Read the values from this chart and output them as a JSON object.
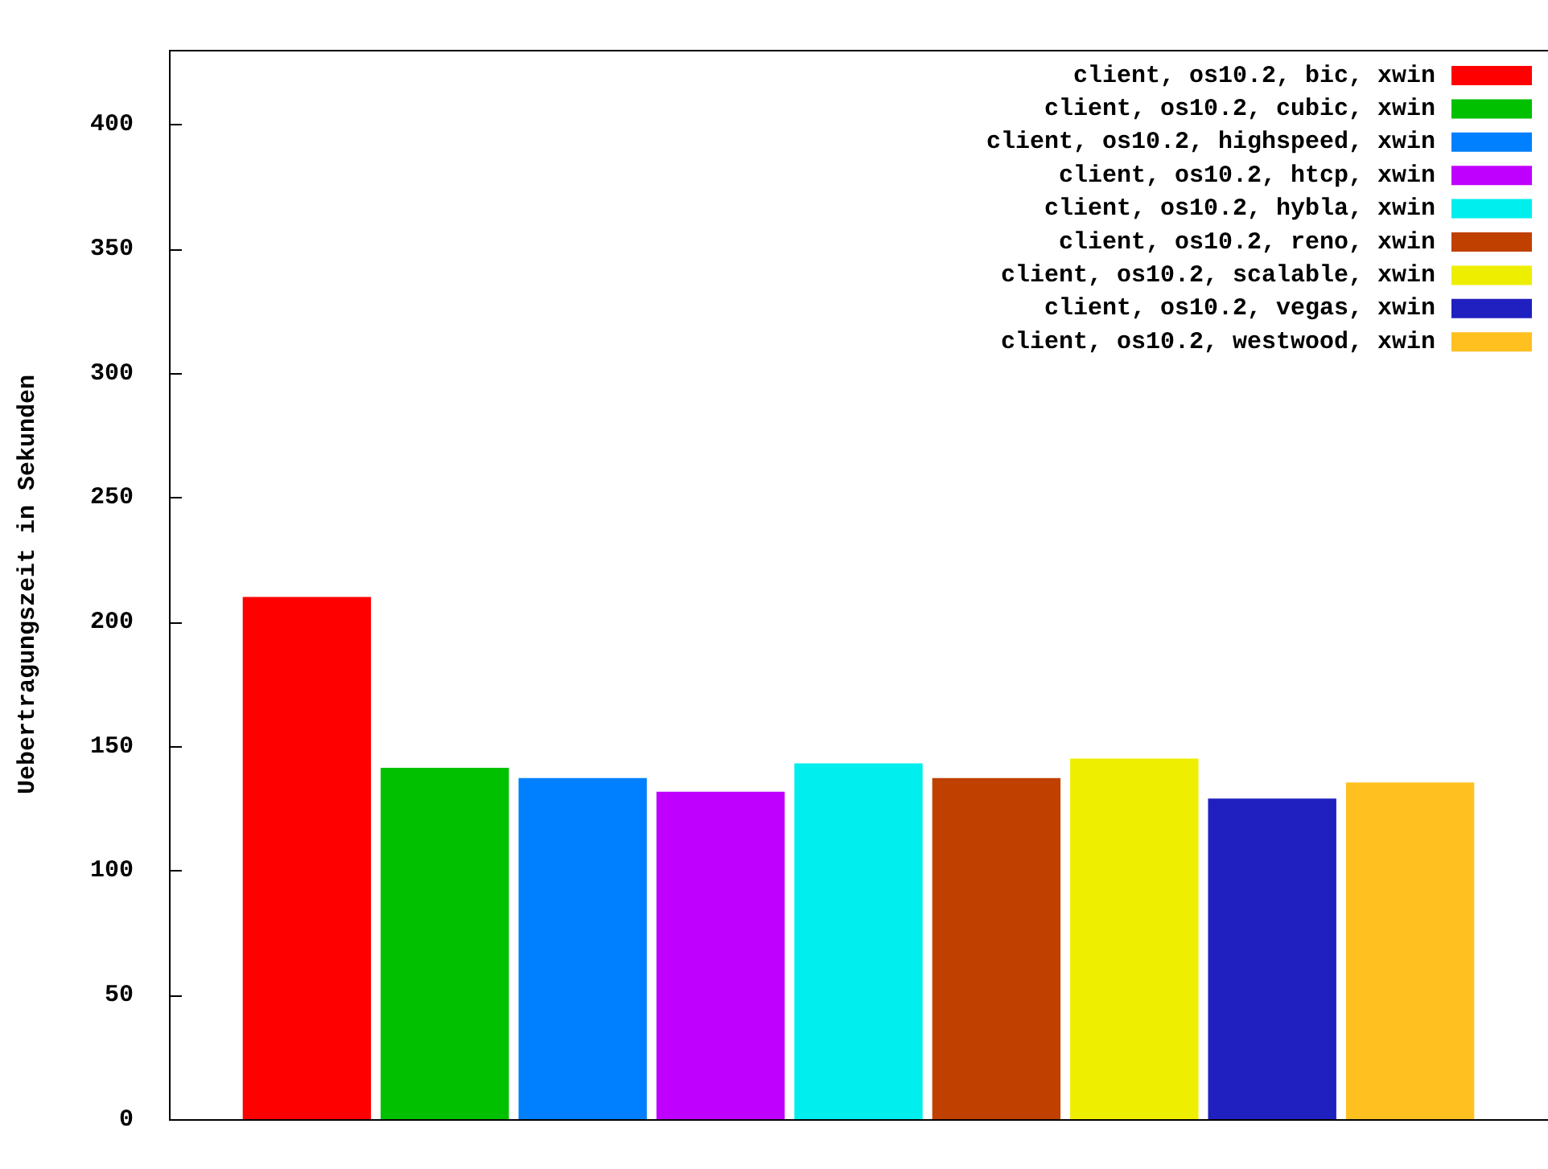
{
  "chart_data": {
    "type": "bar",
    "ylabel": "Uebertragungszeit in Sekunden",
    "categories": [
      null
    ],
    "series": [
      {
        "name": "client, os10.2, bic, xwin",
        "color": "#ff0000",
        "values": [
          210
        ]
      },
      {
        "name": "client, os10.2, cubic, xwin",
        "color": "#00c000",
        "values": [
          141.3
        ]
      },
      {
        "name": "client, os10.2, highspeed, xwin",
        "color": "#0080ff",
        "values": [
          137.2
        ]
      },
      {
        "name": "client, os10.2, htcp, xwin",
        "color": "#c000ff",
        "values": [
          131.7
        ]
      },
      {
        "name": "client, os10.2, hybla, xwin",
        "color": "#00eeee",
        "values": [
          143.1
        ]
      },
      {
        "name": "client, os10.2, reno, xwin",
        "color": "#c04000",
        "values": [
          137.2
        ]
      },
      {
        "name": "client, os10.2, scalable, xwin",
        "color": "#eeee00",
        "values": [
          145
        ]
      },
      {
        "name": "client, os10.2, vegas, xwin",
        "color": "#2020c0",
        "values": [
          128.9
        ]
      },
      {
        "name": "client, os10.2, westwood, xwin",
        "color": "#ffc020",
        "values": [
          135.4
        ]
      }
    ],
    "ylim": [
      0,
      430
    ],
    "yticks": [
      0,
      50,
      100,
      150,
      200,
      250,
      300,
      350,
      400
    ],
    "grid": false,
    "legend": "top right"
  }
}
